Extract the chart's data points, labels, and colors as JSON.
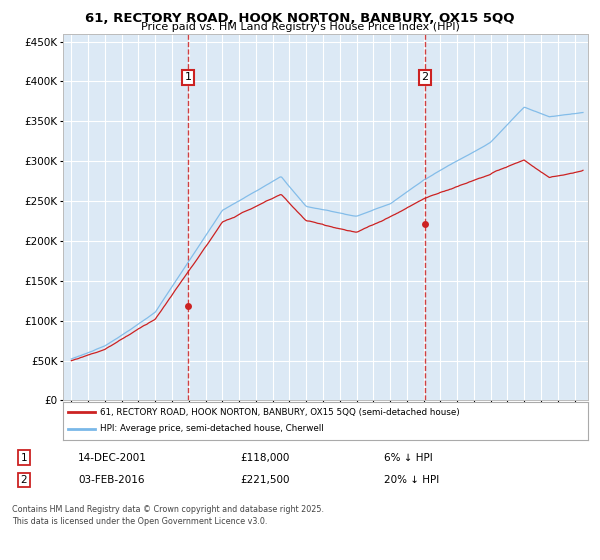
{
  "title_line1": "61, RECTORY ROAD, HOOK NORTON, BANBURY, OX15 5QQ",
  "title_line2": "Price paid vs. HM Land Registry's House Price Index (HPI)",
  "background_color": "#dce9f5",
  "grid_color": "#ffffff",
  "fig_bg_color": "#ffffff",
  "hpi_color": "#7ab8e8",
  "price_color": "#cc2222",
  "marker1_date_x": 2001.96,
  "marker2_date_x": 2016.09,
  "marker1_price": 118000,
  "marker2_price": 221500,
  "ylim_min": 0,
  "ylim_max": 460000,
  "xlim_min": 1994.5,
  "xlim_max": 2025.8,
  "legend_property_label": "61, RECTORY ROAD, HOOK NORTON, BANBURY, OX15 5QQ (semi-detached house)",
  "legend_hpi_label": "HPI: Average price, semi-detached house, Cherwell",
  "footer_line1": "Contains HM Land Registry data © Crown copyright and database right 2025.",
  "footer_line2": "This data is licensed under the Open Government Licence v3.0.",
  "annotation1_date": "14-DEC-2001",
  "annotation1_price": "£118,000",
  "annotation1_hpi": "6% ↓ HPI",
  "annotation2_date": "03-FEB-2016",
  "annotation2_price": "£221,500",
  "annotation2_hpi": "20% ↓ HPI"
}
